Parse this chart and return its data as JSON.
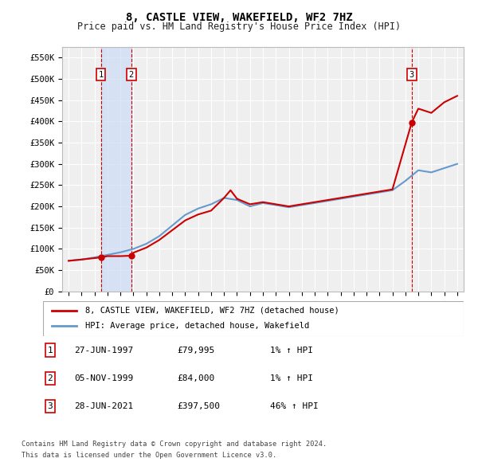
{
  "title": "8, CASTLE VIEW, WAKEFIELD, WF2 7HZ",
  "subtitle": "Price paid vs. HM Land Registry's House Price Index (HPI)",
  "xlim": [
    1994.5,
    2025.5
  ],
  "ylim": [
    0,
    575000
  ],
  "yticks": [
    0,
    50000,
    100000,
    150000,
    200000,
    250000,
    300000,
    350000,
    400000,
    450000,
    500000,
    550000
  ],
  "ytick_labels": [
    "£0",
    "£50K",
    "£100K",
    "£150K",
    "£200K",
    "£250K",
    "£300K",
    "£350K",
    "£400K",
    "£450K",
    "£500K",
    "£550K"
  ],
  "sales": [
    {
      "year": 1997.49,
      "price": 79995,
      "label": "1"
    },
    {
      "year": 1999.84,
      "price": 84000,
      "label": "2"
    },
    {
      "year": 2021.49,
      "price": 397500,
      "label": "3"
    }
  ],
  "sale_color": "#cc0000",
  "hpi_color": "#6699cc",
  "legend_sale_label": "8, CASTLE VIEW, WAKEFIELD, WF2 7HZ (detached house)",
  "legend_hpi_label": "HPI: Average price, detached house, Wakefield",
  "table_entries": [
    {
      "num": "1",
      "date": "27-JUN-1997",
      "price": "£79,995",
      "hpi": "1% ↑ HPI"
    },
    {
      "num": "2",
      "date": "05-NOV-1999",
      "price": "£84,000",
      "hpi": "1% ↑ HPI"
    },
    {
      "num": "3",
      "date": "28-JUN-2021",
      "price": "£397,500",
      "hpi": "46% ↑ HPI"
    }
  ],
  "footnote1": "Contains HM Land Registry data © Crown copyright and database right 2024.",
  "footnote2": "This data is licensed under the Open Government Licence v3.0.",
  "bg_color": "#ffffff",
  "plot_bg_color": "#efefef",
  "grid_color": "#ffffff",
  "vline_color": "#cc0000",
  "vline_shade_color": "#ccddf5"
}
